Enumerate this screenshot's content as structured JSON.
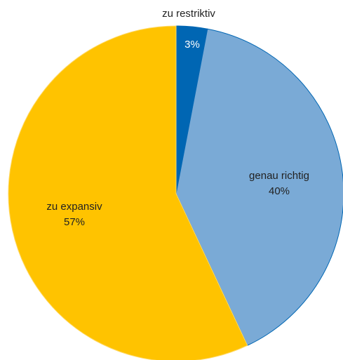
{
  "chart_data": {
    "type": "pie",
    "title": "",
    "slices": [
      {
        "label": "zu restriktiv",
        "value": 3,
        "value_label": "3%",
        "color": "#0066b3",
        "edge_color": "#0066b3"
      },
      {
        "label": "genau richtig",
        "value": 40,
        "value_label": "40%",
        "color": "#7aaad6",
        "edge_color": "#0066b3"
      },
      {
        "label": "zu expansiv",
        "value": 57,
        "value_label": "57%",
        "color": "#ffc300",
        "edge_color": "#ffd966"
      }
    ],
    "start_angle": "12 o'clock",
    "direction": "clockwise",
    "legend": "none",
    "labels": "category and percentage on slices"
  }
}
